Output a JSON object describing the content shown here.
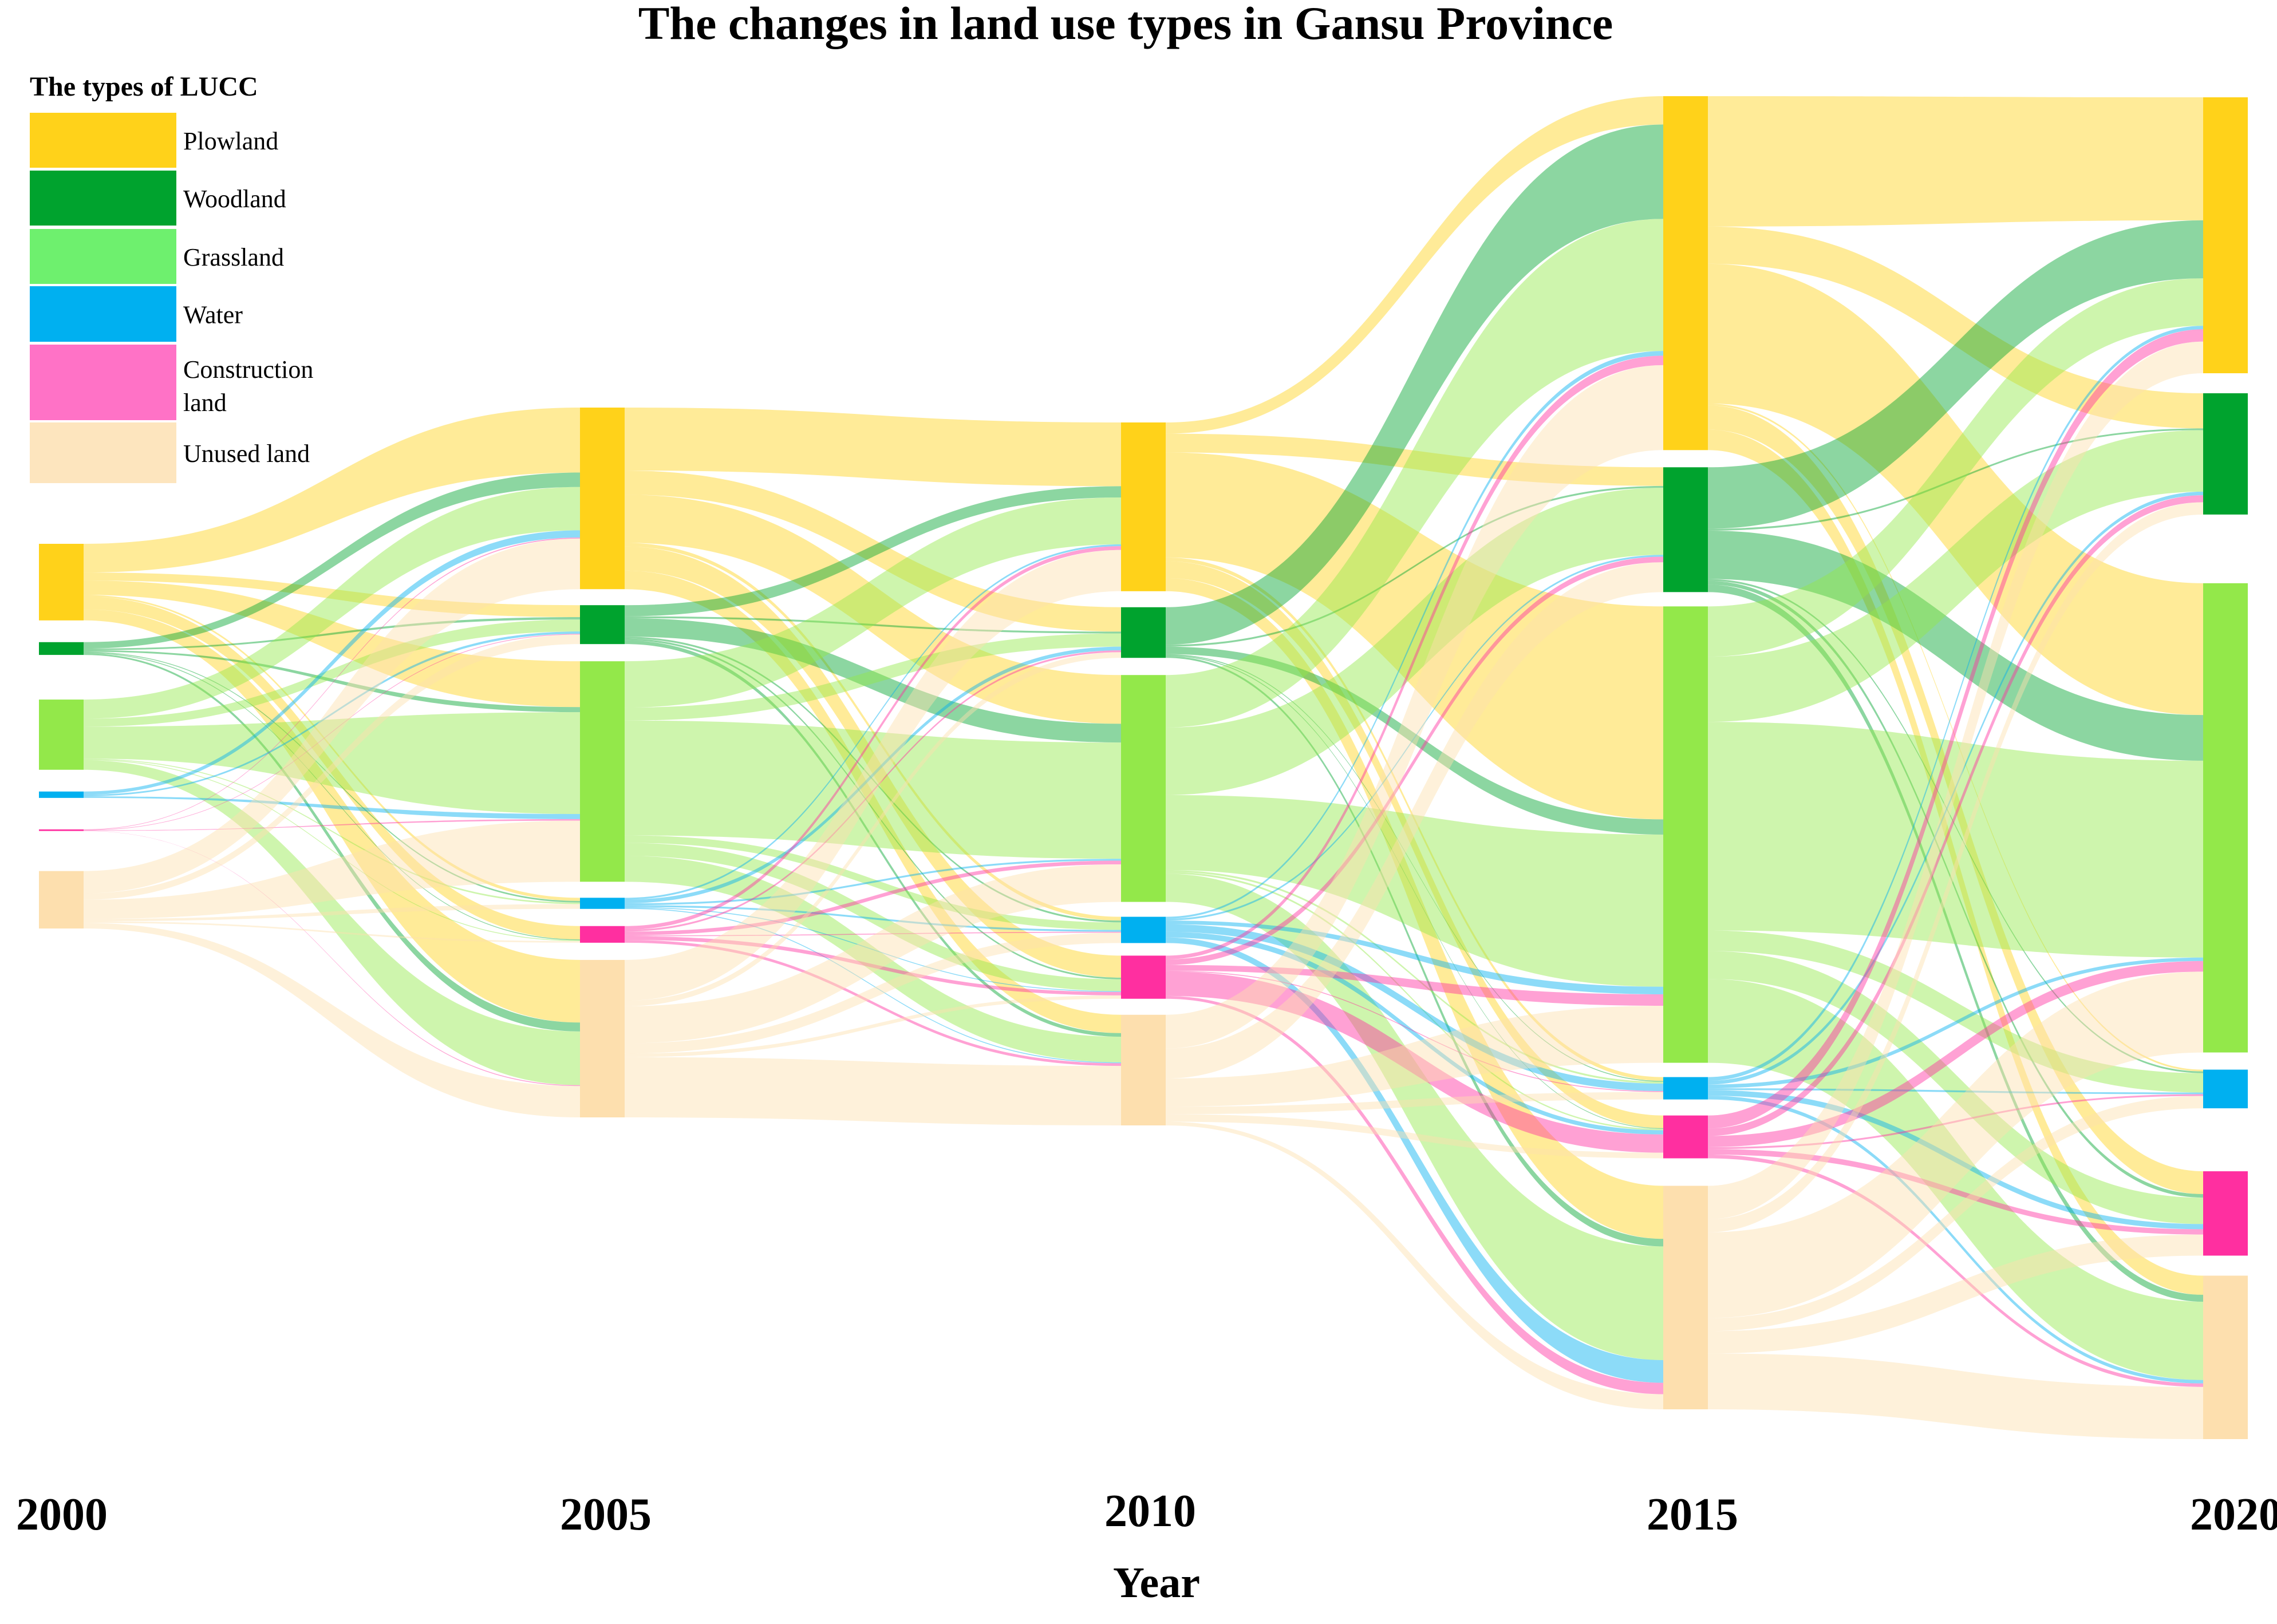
{
  "chart_data": {
    "type": "sankey",
    "title": "The changes in land use types in Gansu Province",
    "xlabel": "Year",
    "years": [
      "2000",
      "2005",
      "2010",
      "2015",
      "2020"
    ],
    "legend": {
      "title": "The types of LUCC",
      "placement": "top-left",
      "items": [
        {
          "name": "Plowland",
          "color": "#FFD21A"
        },
        {
          "name": "Woodland",
          "color": "#00A32E"
        },
        {
          "name": "Grassland",
          "color": "#6EF06E"
        },
        {
          "name": "Water",
          "color": "#00B0F0"
        },
        {
          "name": "Construction land",
          "color": "#FF72C6"
        },
        {
          "name": "Unused land",
          "color": "#FDE5BE"
        }
      ]
    },
    "categories": [
      "Plowland",
      "Woodland",
      "Grassland",
      "Water",
      "Construction land",
      "Unused land"
    ],
    "node_colors": [
      "#FFD21A",
      "#00A32E",
      "#93E84A",
      "#00B0F0",
      "#FF2FA0",
      "#FDDFAE"
    ],
    "node_values": [
      [
        48,
        8,
        44,
        4,
        1,
        36
      ],
      [
        98,
        21,
        119,
        6,
        9,
        85
      ],
      [
        90,
        27,
        121,
        14,
        23,
        59
      ],
      [
        190,
        67,
        245,
        12,
        23,
        120
      ],
      [
        157,
        69,
        267,
        22,
        48,
        93
      ]
    ],
    "flows": [
      {
        "from": 0,
        "to": 1,
        "matrix": [
          [
            18,
            5,
            9,
            1,
            8,
            7
          ],
          [
            4,
            1,
            1,
            0.5,
            0.5,
            1
          ],
          [
            12,
            5,
            20,
            0.5,
            0.5,
            6
          ],
          [
            2,
            1,
            1,
            0,
            0,
            0
          ],
          [
            0.3,
            0.3,
            0.3,
            0,
            0,
            0.1
          ],
          [
            14,
            4,
            12,
            1.5,
            1,
            3.5
          ]
        ]
      },
      {
        "from": 1,
        "to": 2,
        "matrix": [
          [
            34,
            13,
            26,
            2,
            13,
            10
          ],
          [
            6,
            1,
            10,
            1,
            1,
            2
          ],
          [
            25,
            7,
            62,
            4,
            7,
            14
          ],
          [
            1,
            2,
            1,
            1,
            0.5,
            0.5
          ],
          [
            2,
            1,
            2,
            0.5,
            2,
            1.5
          ],
          [
            22,
            3,
            20,
            5.5,
            2,
            32.5
          ]
        ]
      },
      {
        "from": 2,
        "to": 3,
        "matrix": [
          [
            6,
            10,
            56,
            2,
            9,
            7
          ],
          [
            20,
            1,
            4,
            0.5,
            0.5,
            1
          ],
          [
            28,
            36,
            40,
            1,
            1,
            15
          ],
          [
            1,
            1,
            2,
            4,
            3,
            3
          ],
          [
            2,
            3,
            3,
            0.5,
            13,
            1.5
          ],
          [
            18,
            16,
            15,
            4,
            4,
            2
          ]
        ]
      },
      {
        "from": 3,
        "to": 4,
        "matrix": [
          [
            70,
            20,
            75,
            1,
            13,
            11
          ],
          [
            33,
            1,
            26,
            1,
            2,
            4
          ],
          [
            27,
            35,
            112,
            11,
            15,
            45
          ],
          [
            2,
            2,
            2,
            1,
            3,
            2
          ],
          [
            7,
            4,
            6,
            1,
            3,
            2
          ],
          [
            18,
            7,
            46,
            7,
            12,
            30
          ]
        ]
      }
    ]
  }
}
